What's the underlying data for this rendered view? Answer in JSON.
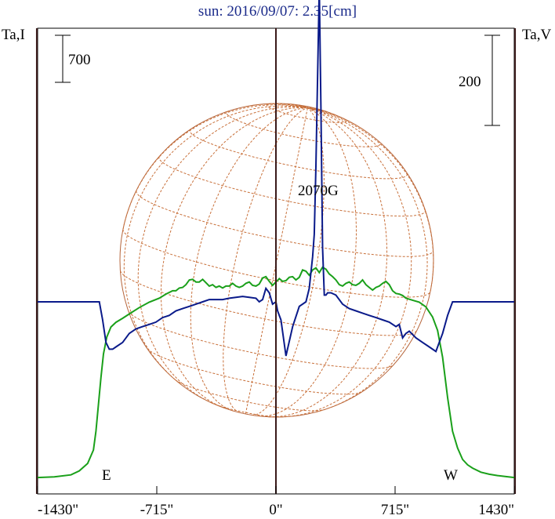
{
  "chart_data": {
    "type": "line",
    "title": "sun: 2016/09/07: 2.35[cm]",
    "colors": {
      "title": "#1a2a8a",
      "intensity": "#1aa01a",
      "polarization": "#0a1a8a",
      "disk": "#b5643a",
      "grid": "#c8703a",
      "limb_lines": "#3a1a1a",
      "axes": "#000000"
    },
    "left_axis": {
      "label": "Ta,I",
      "scale_bar": "700"
    },
    "right_axis": {
      "label": "Ta,V",
      "scale_bar": "200"
    },
    "x_axis": {
      "range": [
        -1430,
        1430
      ],
      "ticks": [
        -1430,
        -715,
        0,
        715,
        1430
      ],
      "tick_labels": [
        "-1430\"",
        "-715\"",
        "0\"",
        "715\"",
        "1430\""
      ]
    },
    "limb_labels": {
      "east": "E",
      "west": "W"
    },
    "limb_positions": [
      -1435,
      0,
      1435
    ],
    "annotation": {
      "text": "2070G",
      "x": 275
    },
    "grid": true,
    "series": [
      {
        "id": "intensity",
        "x": [
          -1430,
          -1330,
          -1230,
          -1180,
          -1130,
          -1095,
          -1080,
          -1065,
          -1050,
          -1035,
          -1015,
          -990,
          -960,
          -920,
          -870,
          -820,
          -760,
          -700,
          -660,
          -620,
          -600,
          -580,
          -560,
          -540,
          -520,
          -500,
          -480,
          -460,
          -440,
          -420,
          -400,
          -380,
          -360,
          -340,
          -320,
          -300,
          -280,
          -260,
          -240,
          -220,
          -200,
          -180,
          -160,
          -140,
          -120,
          -100,
          -80,
          -60,
          -40,
          -20,
          0,
          20,
          40,
          60,
          80,
          100,
          120,
          140,
          160,
          180,
          200,
          220,
          240,
          260,
          280,
          300,
          320,
          340,
          360,
          380,
          400,
          420,
          440,
          460,
          480,
          500,
          520,
          540,
          560,
          580,
          600,
          620,
          640,
          660,
          680,
          700,
          720,
          740,
          760,
          780,
          820,
          860,
          900,
          940,
          970,
          1000,
          1030,
          1060,
          1090,
          1120,
          1150,
          1180,
          1230,
          1280,
          1330,
          1380,
          1430
        ],
        "y": [
          10,
          20,
          50,
          110,
          220,
          420,
          700,
          1100,
          1500,
          1850,
          2100,
          2250,
          2320,
          2380,
          2460,
          2540,
          2620,
          2680,
          2740,
          2790,
          2790,
          2830,
          2840,
          2880,
          2950,
          2960,
          2920,
          2920,
          2960,
          2910,
          2860,
          2880,
          2840,
          2860,
          2830,
          2860,
          2860,
          2900,
          2860,
          2840,
          2860,
          2900,
          2920,
          2870,
          2860,
          2890,
          2980,
          3000,
          2930,
          2870,
          2920,
          2970,
          2930,
          2940,
          2990,
          3000,
          2950,
          2990,
          3100,
          3080,
          3020,
          3100,
          3130,
          3060,
          3140,
          3110,
          3040,
          3000,
          2950,
          2880,
          2860,
          2900,
          2920,
          2880,
          2870,
          2900,
          2950,
          2880,
          2840,
          2800,
          2840,
          2860,
          2900,
          2930,
          2880,
          2790,
          2750,
          2740,
          2720,
          2680,
          2650,
          2620,
          2550,
          2400,
          2200,
          1800,
          1200,
          700,
          450,
          280,
          200,
          150,
          90,
          60,
          40,
          25,
          10
        ]
      },
      {
        "id": "polarization",
        "x": [
          -1430,
          -1060,
          -1040,
          -1020,
          -1000,
          -980,
          -960,
          -920,
          -880,
          -840,
          -800,
          -760,
          -720,
          -680,
          -640,
          -600,
          -560,
          -520,
          -480,
          -440,
          -400,
          -360,
          -320,
          -280,
          -240,
          -200,
          -160,
          -120,
          -100,
          -80,
          -60,
          -40,
          -20,
          0,
          10,
          30,
          60,
          100,
          140,
          180,
          200,
          220,
          230,
          240,
          260,
          270,
          280,
          290,
          300,
          310,
          330,
          360,
          400,
          440,
          480,
          520,
          560,
          600,
          640,
          680,
          720,
          740,
          760,
          780,
          800,
          840,
          880,
          920,
          960,
          980,
          1000,
          1030,
          1060,
          1430
        ],
        "y": [
          0,
          0,
          -40,
          -90,
          -105,
          -105,
          -100,
          -90,
          -70,
          -60,
          -55,
          -50,
          -45,
          -35,
          -30,
          -20,
          -15,
          -10,
          -5,
          0,
          5,
          5,
          5,
          8,
          10,
          12,
          10,
          8,
          0,
          5,
          30,
          20,
          -5,
          0,
          -20,
          -40,
          -120,
          -55,
          -10,
          0,
          30,
          100,
          150,
          300,
          700,
          430,
          120,
          15,
          15,
          20,
          20,
          15,
          -5,
          -15,
          -20,
          -25,
          -30,
          -35,
          -40,
          -45,
          -55,
          -50,
          -80,
          -70,
          -65,
          -80,
          -90,
          -100,
          -110,
          -90,
          -70,
          -30,
          0,
          0
        ]
      }
    ]
  }
}
